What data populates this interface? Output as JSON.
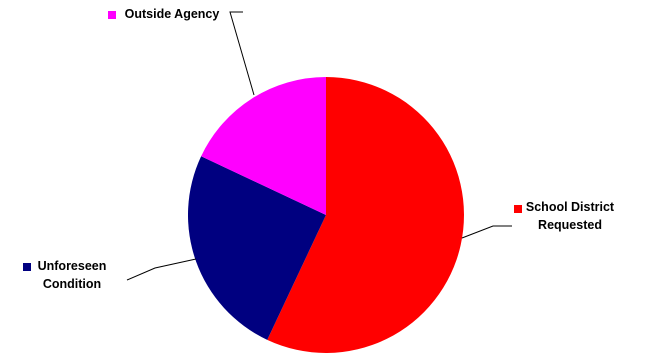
{
  "chart_data": {
    "type": "pie",
    "title": "",
    "slices": [
      {
        "label": "School District Requested",
        "label_lines": [
          "School District",
          "Requested"
        ],
        "value": 57,
        "color": "#ff0000"
      },
      {
        "label": "Unforeseen Condition",
        "label_lines": [
          "Unforeseen",
          "Condition"
        ],
        "value": 25,
        "color": "#000080"
      },
      {
        "label": "Outside Agency",
        "label_lines": [
          "Outside Agency"
        ],
        "value": 18,
        "color": "#ff00ff"
      }
    ],
    "start": "12 o'clock",
    "direction": "clockwise",
    "legend": "none"
  }
}
